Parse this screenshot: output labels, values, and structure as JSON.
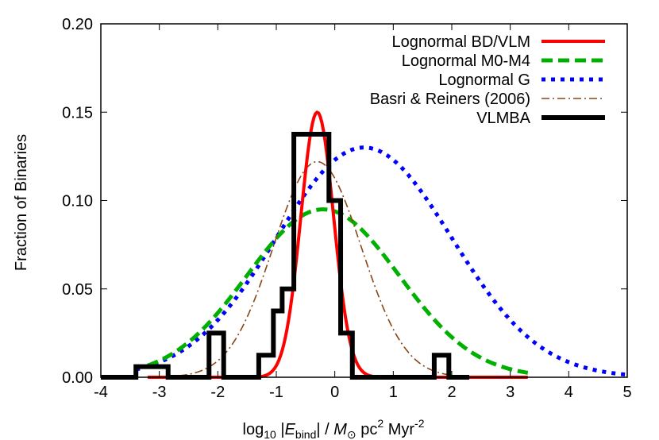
{
  "chart_data": {
    "type": "line",
    "title": "",
    "xlabel": {
      "prefix": "log",
      "prefix_sub": "10",
      "abs_open": " |",
      "E": "E",
      "E_sub": "bind",
      "abs_close": "| /  ",
      "M": "M",
      "M_sub": "⊙",
      "pc": " pc",
      "pc_sup": "2",
      "myr": " Myr",
      "myr_sup": "-2"
    },
    "ylabel": "Fraction of Binaries",
    "xlim": [
      -4,
      5
    ],
    "ylim": [
      0,
      0.2
    ],
    "xticks": [
      "-4",
      "-3",
      "-2",
      "-1",
      "0",
      "1",
      "2",
      "3",
      "4",
      "5"
    ],
    "yticks": [
      "0.00",
      "0.05",
      "0.10",
      "0.15",
      "0.20"
    ],
    "legend_position": "top-right",
    "grid": false,
    "series": [
      {
        "name": "Lognormal BD/VLM",
        "kind": "gaussian",
        "mu": -0.3,
        "sigma": 0.28,
        "peak": 0.15,
        "x_range": [
          -3.2,
          3.3
        ],
        "color": "#ff0000",
        "dash": "solid"
      },
      {
        "name": "Lognormal M0-M4",
        "kind": "gaussian",
        "mu": -0.2,
        "sigma": 1.3,
        "peak": 0.095,
        "x_range": [
          -3.2,
          3.3
        ],
        "color": "#00b000",
        "dash": "dashed"
      },
      {
        "name": "Lognormal G",
        "kind": "gaussian",
        "mu": 0.5,
        "sigma": 1.5,
        "peak": 0.13,
        "x_range": [
          -3.4,
          5.0
        ],
        "color": "#0000ff",
        "dash": "dotted"
      },
      {
        "name": "Basri & Reiners (2006)",
        "kind": "gaussian",
        "mu": -0.3,
        "sigma": 0.75,
        "peak": 0.122,
        "x_range": [
          -3.2,
          3.3
        ],
        "color": "#8b4513",
        "dash": "dashdot"
      },
      {
        "name": "VLMBA",
        "kind": "histogram",
        "color": "#000000",
        "bins": [
          {
            "x0": -4.0,
            "x1": -3.4,
            "y": 0.0
          },
          {
            "x0": -3.4,
            "x1": -2.85,
            "y": 0.006
          },
          {
            "x0": -2.85,
            "x1": -2.15,
            "y": 0.0
          },
          {
            "x0": -2.15,
            "x1": -1.9,
            "y": 0.025
          },
          {
            "x0": -1.9,
            "x1": -1.3,
            "y": 0.0
          },
          {
            "x0": -1.3,
            "x1": -1.05,
            "y": 0.0125
          },
          {
            "x0": -1.05,
            "x1": -0.9,
            "y": 0.0375
          },
          {
            "x0": -0.9,
            "x1": -0.7,
            "y": 0.05
          },
          {
            "x0": -0.7,
            "x1": -0.1,
            "y": 0.1375
          },
          {
            "x0": -0.1,
            "x1": 0.1,
            "y": 0.1
          },
          {
            "x0": 0.1,
            "x1": 0.3,
            "y": 0.025
          },
          {
            "x0": 0.3,
            "x1": 0.5,
            "y": 0.0
          },
          {
            "x0": 0.5,
            "x1": 1.7,
            "y": 0.0
          },
          {
            "x0": 1.7,
            "x1": 1.95,
            "y": 0.0125
          },
          {
            "x0": 1.95,
            "x1": 2.3,
            "y": 0.0
          }
        ]
      }
    ]
  }
}
